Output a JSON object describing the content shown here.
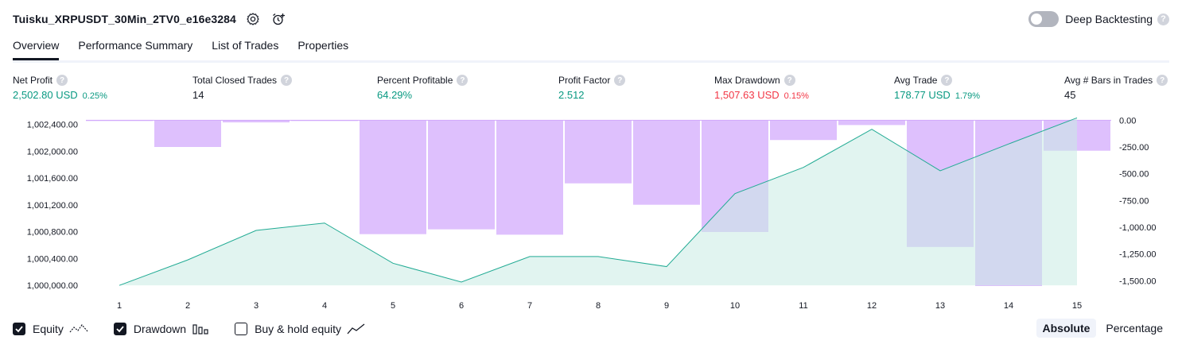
{
  "header": {
    "strategy_name": "Tuisku_XRPUSDT_30Min_2TV0_e16e3284",
    "deep_backtesting_label": "Deep Backtesting",
    "help_glyph": "?"
  },
  "tabs": [
    {
      "label": "Overview",
      "active": true
    },
    {
      "label": "Performance Summary",
      "active": false
    },
    {
      "label": "List of Trades",
      "active": false
    },
    {
      "label": "Properties",
      "active": false
    }
  ],
  "metrics": {
    "net_profit": {
      "label": "Net Profit",
      "value": "2,502.80 USD",
      "sub": "0.25%"
    },
    "total_closed_trades": {
      "label": "Total Closed Trades",
      "value": "14"
    },
    "percent_profitable": {
      "label": "Percent Profitable",
      "value": "64.29%"
    },
    "profit_factor": {
      "label": "Profit Factor",
      "value": "2.512"
    },
    "max_drawdown": {
      "label": "Max Drawdown",
      "value": "1,507.63 USD",
      "sub": "0.15%"
    },
    "avg_trade": {
      "label": "Avg Trade",
      "value": "178.77 USD",
      "sub": "1.79%"
    },
    "avg_bars": {
      "label": "Avg # Bars in Trades",
      "value": "45"
    }
  },
  "legend": {
    "equity": {
      "label": "Equity",
      "checked": true
    },
    "drawdown": {
      "label": "Drawdown",
      "checked": true
    },
    "buy_hold": {
      "label": "Buy & hold equity",
      "checked": false
    }
  },
  "mode": {
    "absolute": "Absolute",
    "percentage": "Percentage",
    "selected": "Absolute"
  },
  "colors": {
    "equity_line": "#22ab94",
    "equity_fill": "#c8ebe3",
    "drawdown_bar": "#d1a7fc",
    "positive": "#089981",
    "negative": "#f23645"
  },
  "chart_data": {
    "type": "area",
    "x": [
      1,
      2,
      3,
      4,
      5,
      6,
      7,
      8,
      9,
      10,
      11,
      12,
      13,
      14,
      15
    ],
    "left_axis": {
      "ticks": [
        1000000,
        1000400,
        1000800,
        1001200,
        1001600,
        1002000,
        1002400
      ],
      "tick_labels": [
        "1,000,000.00",
        "1,000,400.00",
        "1,000,800.00",
        "1,001,200.00",
        "1,001,600.00",
        "1,002,000.00",
        "1,002,400.00"
      ],
      "range": [
        999990,
        1002480
      ]
    },
    "right_axis": {
      "ticks": [
        0,
        -250,
        -500,
        -750,
        -1000,
        -1250,
        -1500
      ],
      "tick_labels": [
        "0.00",
        "-250.00",
        "-500.00",
        "-750.00",
        "-1,000.00",
        "-1,250.00",
        "-1,500.00"
      ],
      "range": [
        -1550,
        10
      ]
    },
    "series": [
      {
        "name": "Equity",
        "axis": "left",
        "values": [
          1000000,
          1000380,
          1000820,
          1000930,
          1000330,
          1000050,
          1000430,
          1000430,
          1000280,
          1001370,
          1001760,
          1002330,
          1001710,
          1002110,
          1002500
        ]
      },
      {
        "name": "Drawdown",
        "axis": "right",
        "kind": "bar",
        "values": [
          -3,
          -250,
          -20,
          -3,
          -1065,
          -1020,
          -1070,
          -590,
          -790,
          -1045,
          -185,
          -45,
          -1185,
          -1550,
          -285
        ]
      }
    ]
  }
}
